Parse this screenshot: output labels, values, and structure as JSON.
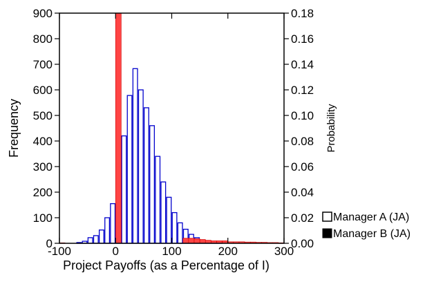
{
  "chart_data": {
    "type": "bar",
    "xlabel": "Project Payoffs (as a Percentage of I)",
    "ylabel": "Frequency",
    "y2label": "Probability",
    "xlim": [
      -100,
      300
    ],
    "ylim": [
      0,
      900
    ],
    "y2lim": [
      0,
      0.18
    ],
    "bin_width": 10,
    "x_ticks": [
      -100,
      0,
      100,
      200,
      300
    ],
    "x_tick_labels": [
      "-100",
      "0",
      "100",
      "200",
      "300"
    ],
    "y_ticks": [
      0,
      100,
      200,
      300,
      400,
      500,
      600,
      700,
      800,
      900
    ],
    "y_tick_labels": [
      "0",
      "100",
      "200",
      "300",
      "400",
      "500",
      "600",
      "700",
      "800",
      "900"
    ],
    "y2_ticks": [
      0,
      0.02,
      0.04,
      0.06,
      0.08,
      0.1,
      0.12,
      0.14,
      0.16,
      0.18
    ],
    "y2_tick_labels": [
      "0.00",
      "0.02",
      "0.04",
      "0.06",
      "0.08",
      "0.10",
      "0.12",
      "0.14",
      "0.16",
      "0.18"
    ],
    "legend_position": "right",
    "series": [
      {
        "name": "Manager A (JA)",
        "style": "outline",
        "color": "#0000cc",
        "bin_starts": [
          -70,
          -60,
          -50,
          -40,
          -30,
          -20,
          -10,
          0,
          10,
          20,
          30,
          40,
          50,
          60,
          70,
          80,
          90,
          100,
          110,
          120,
          130,
          140,
          150,
          160,
          170,
          180
        ],
        "values": [
          3,
          8,
          22,
          30,
          52,
          100,
          155,
          250,
          420,
          578,
          683,
          600,
          530,
          460,
          340,
          240,
          180,
          120,
          80,
          55,
          35,
          22,
          12,
          6,
          3,
          1
        ]
      },
      {
        "name": "Manager B (JA)",
        "style": "filled",
        "color": "#ff4444",
        "bin_starts": [
          -100,
          0,
          120,
          130,
          140,
          150,
          160,
          170,
          180,
          190,
          200,
          210,
          220,
          230,
          240,
          250,
          260,
          270,
          280,
          290
        ],
        "values": [
          2,
          900,
          20,
          20,
          18,
          15,
          12,
          10,
          10,
          10,
          6,
          6,
          6,
          5,
          5,
          4,
          4,
          3,
          3,
          2
        ]
      }
    ]
  }
}
